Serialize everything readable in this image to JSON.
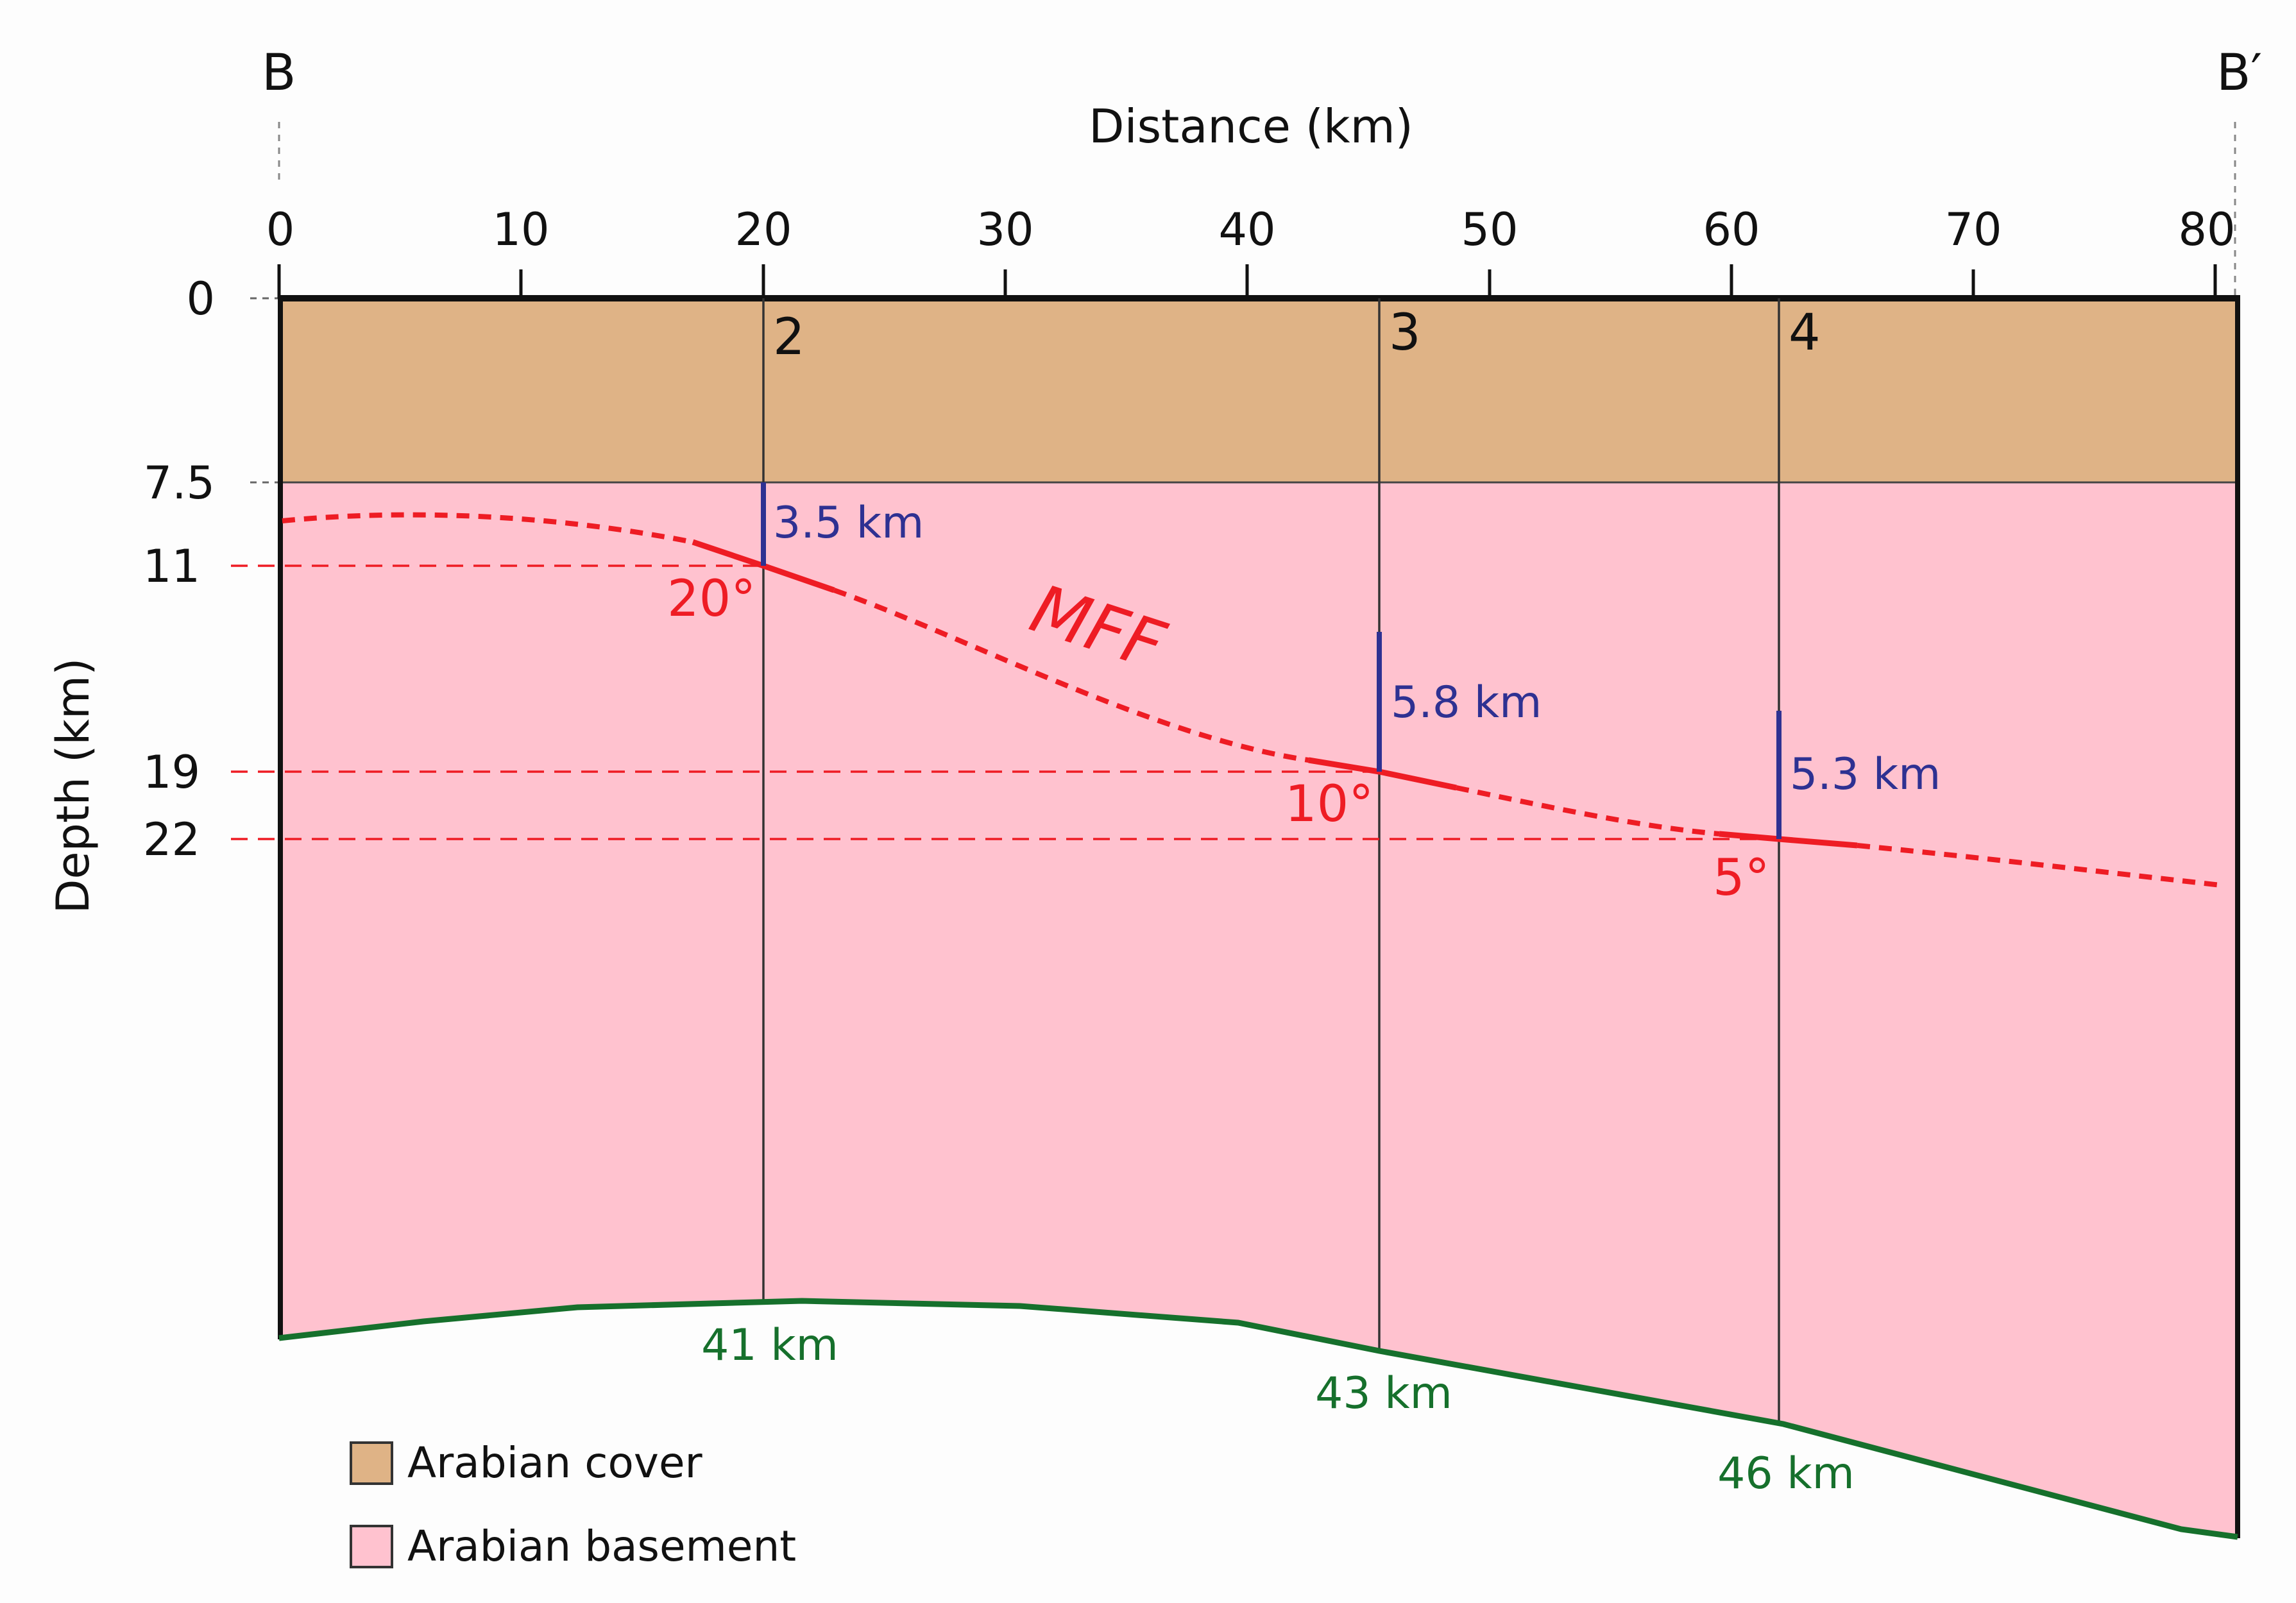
{
  "figure": {
    "profile_start_label": "B",
    "profile_end_label": "B′",
    "x_axis_title": "Distance (km)",
    "y_axis_title": "Depth (km)",
    "x_ticks": [
      "0",
      "10",
      "20",
      "30",
      "40",
      "50",
      "60",
      "70",
      "80"
    ],
    "y_ticks": [
      "0",
      "7.5",
      "11",
      "19",
      "22"
    ]
  },
  "columns": [
    {
      "label": "2",
      "thickness_label": "3.5 km",
      "moho_label": "41 km",
      "dip_label": "20°"
    },
    {
      "label": "3",
      "thickness_label": "5.8 km",
      "moho_label": "43 km",
      "dip_label": "10°"
    },
    {
      "label": "4",
      "thickness_label": "5.3 km",
      "moho_label": "46 km",
      "dip_label": "5°"
    }
  ],
  "fault": {
    "label": "MFF"
  },
  "legend": {
    "items": [
      {
        "label": "Arabian cover",
        "color": "#dfb386"
      },
      {
        "label": "Arabian basement",
        "color": "#ffc2cf"
      }
    ]
  },
  "colors": {
    "cover": "#dfb386",
    "basement": "#ffc2cf",
    "fault": "#ee1c24",
    "moho": "#16702c",
    "thickness": "#2e3192",
    "frame": "#111111"
  },
  "chart_data": {
    "type": "cross-section",
    "x_range_km": [
      0,
      81
    ],
    "cover_depth_range_km": [
      0,
      7.5
    ],
    "columns_km": [
      20,
      45.5,
      62
    ],
    "fault_points": [
      {
        "distance_km": 20,
        "depth_km": 11,
        "dip_deg": 20,
        "thickness_km": 3.5
      },
      {
        "distance_km": 45.5,
        "depth_km": 19,
        "dip_deg": 10,
        "thickness_km": 5.8
      },
      {
        "distance_km": 62,
        "depth_km": 22,
        "dip_deg": 5,
        "thickness_km": 5.3
      }
    ],
    "moho_points": [
      {
        "distance_km": 20,
        "depth_km": 41
      },
      {
        "distance_km": 45.5,
        "depth_km": 43
      },
      {
        "distance_km": 62,
        "depth_km": 46
      }
    ]
  }
}
